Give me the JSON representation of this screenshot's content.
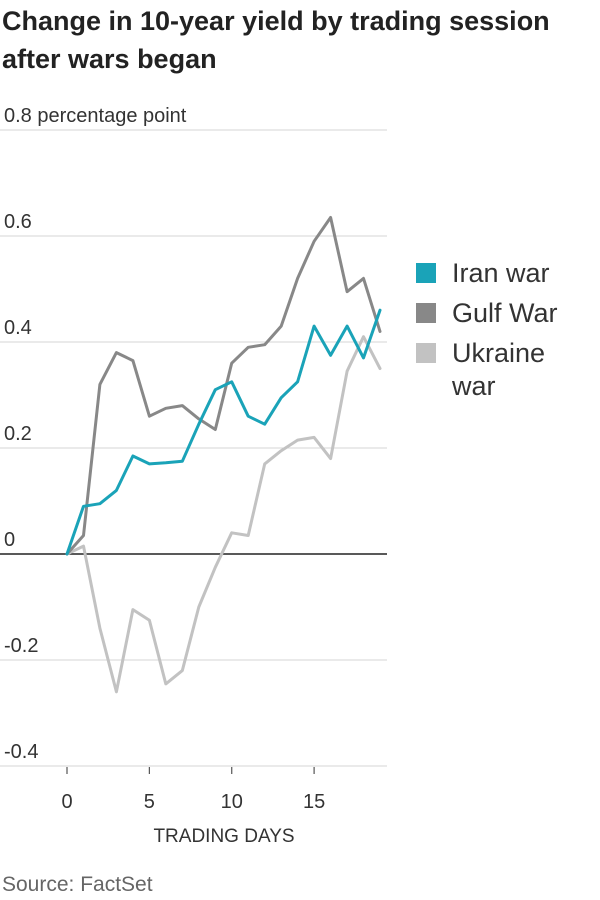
{
  "chart_data": {
    "type": "line",
    "title": "Change in 10-year yield by trading session after wars began",
    "title_lines": [
      "Change in 10-year yield by trading session",
      "after wars began"
    ],
    "xlabel": "TRADING DAYS",
    "ylabel": "percentage point",
    "ylim": [
      -0.4,
      0.8
    ],
    "xlim": [
      0,
      19
    ],
    "y_ticks": [
      0.8,
      0.6,
      0.4,
      0.2,
      0,
      -0.2,
      -0.4
    ],
    "y_tick_labels": [
      "0.8 percentage point",
      "0.6",
      "0.4",
      "0.2",
      "0",
      "-0.2",
      "-0.4"
    ],
    "x_ticks": [
      0,
      5,
      10,
      15
    ],
    "x_tick_labels": [
      "0",
      "5",
      "10",
      "15"
    ],
    "grid": true,
    "legend_position": "right",
    "series": [
      {
        "name": "Iran war",
        "legend_lines": [
          "Iran war"
        ],
        "color": "#1aa3b8",
        "x": [
          0,
          1,
          2,
          3,
          4,
          5,
          6,
          7,
          8,
          9,
          10,
          11,
          12,
          13,
          14,
          15,
          16,
          17,
          18,
          19
        ],
        "values": [
          0.0,
          0.09,
          0.095,
          0.12,
          0.185,
          0.17,
          0.172,
          0.175,
          0.245,
          0.31,
          0.325,
          0.26,
          0.245,
          0.295,
          0.325,
          0.43,
          0.375,
          0.43,
          0.37,
          0.46
        ]
      },
      {
        "name": "Gulf War",
        "legend_lines": [
          "Gulf War"
        ],
        "color": "#888888",
        "x": [
          0,
          1,
          2,
          3,
          4,
          5,
          6,
          7,
          8,
          9,
          10,
          11,
          12,
          13,
          14,
          15,
          16,
          17,
          18,
          19
        ],
        "values": [
          0.0,
          0.035,
          0.32,
          0.38,
          0.365,
          0.26,
          0.275,
          0.28,
          0.255,
          0.235,
          0.36,
          0.39,
          0.395,
          0.43,
          0.52,
          0.59,
          0.635,
          0.495,
          0.52,
          0.42
        ]
      },
      {
        "name": "Ukraine war",
        "legend_lines": [
          "Ukraine",
          "war"
        ],
        "color": "#c2c2c2",
        "x": [
          0,
          1,
          2,
          3,
          4,
          5,
          6,
          7,
          8,
          9,
          10,
          11,
          12,
          13,
          14,
          15,
          16,
          17,
          18,
          19
        ],
        "values": [
          0.0,
          0.015,
          -0.14,
          -0.26,
          -0.105,
          -0.125,
          -0.245,
          -0.22,
          -0.1,
          -0.025,
          0.04,
          0.035,
          0.17,
          0.195,
          0.215,
          0.22,
          0.18,
          0.345,
          0.41,
          0.35
        ]
      }
    ],
    "source": "Source: FactSet"
  }
}
